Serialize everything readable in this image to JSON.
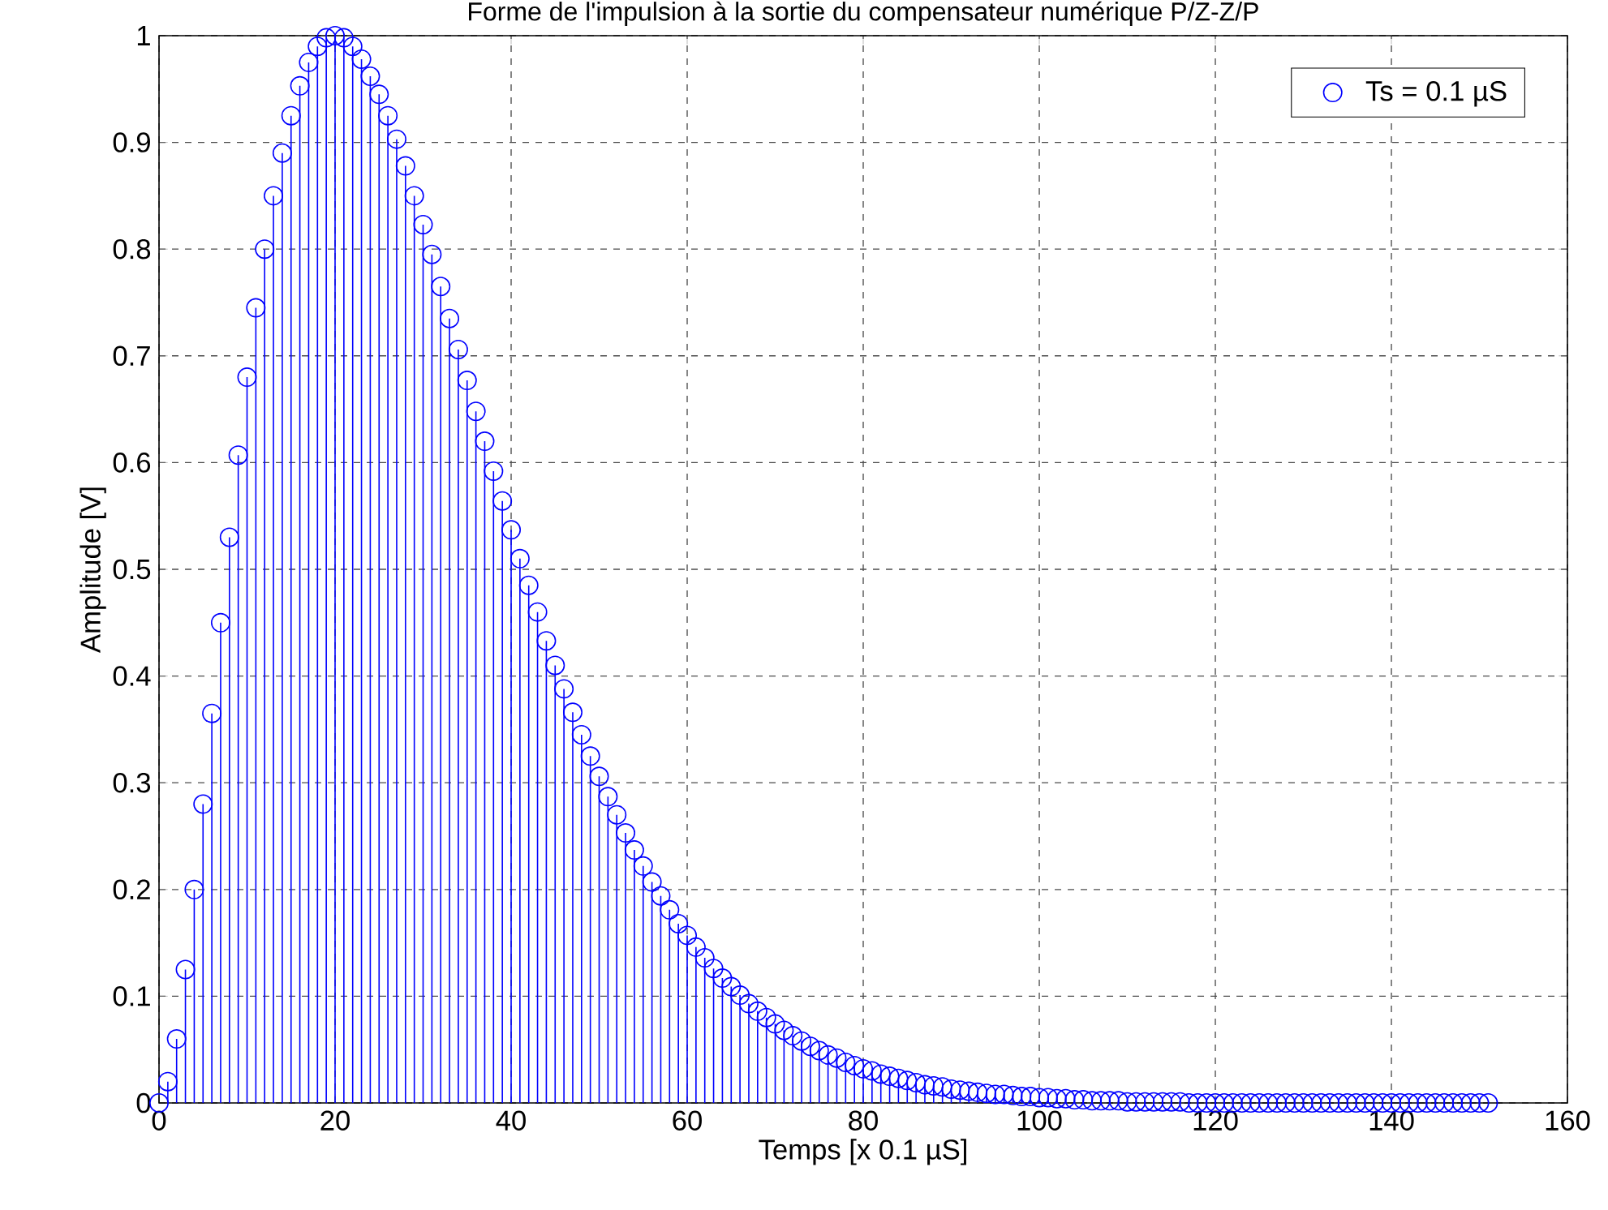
{
  "chart_data": {
    "type": "lollipop",
    "title": "Forme de l'impulsion à la sortie du compensateur numérique P/Z-Z/P",
    "xlabel": "Temps [x 0.1 µS]",
    "ylabel": "Amplitude [V]",
    "x": [
      0,
      1,
      2,
      3,
      4,
      5,
      6,
      7,
      8,
      9,
      10,
      11,
      12,
      13,
      14,
      15,
      16,
      17,
      18,
      19,
      20,
      21,
      22,
      23,
      24,
      25,
      26,
      27,
      28,
      29,
      30,
      31,
      32,
      33,
      34,
      35,
      36,
      37,
      38,
      39,
      40,
      41,
      42,
      43,
      44,
      45,
      46,
      47,
      48,
      49,
      50,
      51,
      52,
      53,
      54,
      55,
      56,
      57,
      58,
      59,
      60,
      61,
      62,
      63,
      64,
      65,
      66,
      67,
      68,
      69,
      70,
      71,
      72,
      73,
      74,
      75,
      76,
      77,
      78,
      79,
      80,
      81,
      82,
      83,
      84,
      85,
      86,
      87,
      88,
      89,
      90,
      91,
      92,
      93,
      94,
      95,
      96,
      97,
      98,
      99,
      100,
      101,
      102,
      103,
      104,
      105,
      106,
      107,
      108,
      109,
      110,
      111,
      112,
      113,
      114,
      115,
      116,
      117,
      118,
      119,
      120,
      121,
      122,
      123,
      124,
      125,
      126,
      127,
      128,
      129,
      130,
      131,
      132,
      133,
      134,
      135,
      136,
      137,
      138,
      139,
      140,
      141,
      142,
      143,
      144,
      145,
      146,
      147,
      148,
      149,
      150,
      151
    ],
    "series": [
      {
        "name": "Ts = 0.1 µS",
        "color": "#0000ff",
        "values": [
          0,
          0.02,
          0.06,
          0.125,
          0.2,
          0.28,
          0.365,
          0.45,
          0.53,
          0.607,
          0.68,
          0.745,
          0.8,
          0.85,
          0.89,
          0.925,
          0.953,
          0.975,
          0.99,
          0.998,
          1.0,
          0.998,
          0.99,
          0.978,
          0.962,
          0.945,
          0.925,
          0.903,
          0.878,
          0.85,
          0.823,
          0.795,
          0.765,
          0.735,
          0.706,
          0.677,
          0.648,
          0.62,
          0.592,
          0.564,
          0.537,
          0.51,
          0.485,
          0.46,
          0.433,
          0.41,
          0.388,
          0.366,
          0.345,
          0.325,
          0.306,
          0.287,
          0.27,
          0.253,
          0.237,
          0.222,
          0.207,
          0.194,
          0.181,
          0.168,
          0.157,
          0.146,
          0.136,
          0.126,
          0.117,
          0.109,
          0.101,
          0.093,
          0.086,
          0.08,
          0.074,
          0.068,
          0.063,
          0.058,
          0.053,
          0.049,
          0.045,
          0.042,
          0.038,
          0.035,
          0.032,
          0.03,
          0.027,
          0.025,
          0.023,
          0.021,
          0.019,
          0.017,
          0.016,
          0.015,
          0.013,
          0.012,
          0.011,
          0.01,
          0.009,
          0.008,
          0.008,
          0.007,
          0.006,
          0.006,
          0.005,
          0.005,
          0.004,
          0.004,
          0.003,
          0.003,
          0.002,
          0.002,
          0.002,
          0.002,
          0.001,
          0.001,
          0.001,
          0.001,
          0.001,
          0.001,
          0.001,
          0,
          0,
          0,
          0,
          0,
          0,
          0,
          0,
          0,
          0,
          0,
          0,
          0,
          0,
          0,
          0,
          0,
          0,
          0,
          0,
          0,
          0,
          0,
          0,
          0,
          0,
          0,
          0,
          0,
          0,
          0,
          0,
          0,
          0,
          0
        ]
      }
    ],
    "xlim": [
      0,
      160
    ],
    "ylim": [
      0,
      1
    ],
    "xticks": [
      0,
      20,
      40,
      60,
      80,
      100,
      120,
      140,
      160
    ],
    "yticks": [
      0,
      0.1,
      0.2,
      0.3,
      0.4,
      0.5,
      0.6,
      0.7,
      0.8,
      0.9,
      1
    ],
    "grid": true,
    "legend": "top right",
    "marker": "circle"
  }
}
